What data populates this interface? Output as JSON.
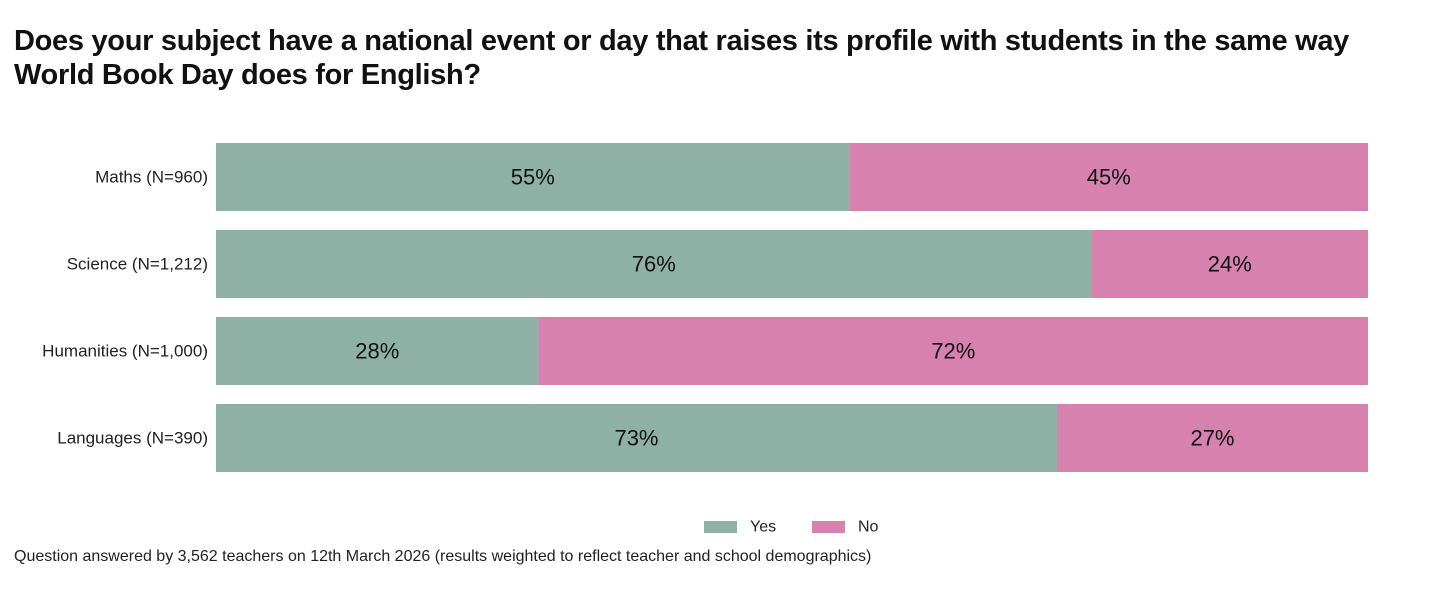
{
  "title": "Does your subject have a national event or day that raises its profile with students in the same way World Book Day does for English?",
  "footnote": "Question answered by 3,562 teachers on 12th March 2026 (results weighted to reflect teacher and school demographics)",
  "chart_data": {
    "type": "bar",
    "orientation": "horizontal",
    "stacked": true,
    "categories": [
      "Maths (N=960)",
      "Science (N=1,212)",
      "Humanities (N=1,000)",
      "Languages (N=390)"
    ],
    "series": [
      {
        "name": "Yes",
        "values": [
          55,
          76,
          28,
          73
        ],
        "labels": [
          "55%",
          "76%",
          "28%",
          "73%"
        ],
        "color": "#8fb1a5"
      },
      {
        "name": "No",
        "values": [
          45,
          24,
          72,
          27
        ],
        "labels": [
          "45%",
          "24%",
          "72%",
          "27%"
        ],
        "color": "#d681ae"
      }
    ],
    "xlim": [
      0,
      100
    ],
    "grid": false,
    "legend": "bottom-center"
  }
}
